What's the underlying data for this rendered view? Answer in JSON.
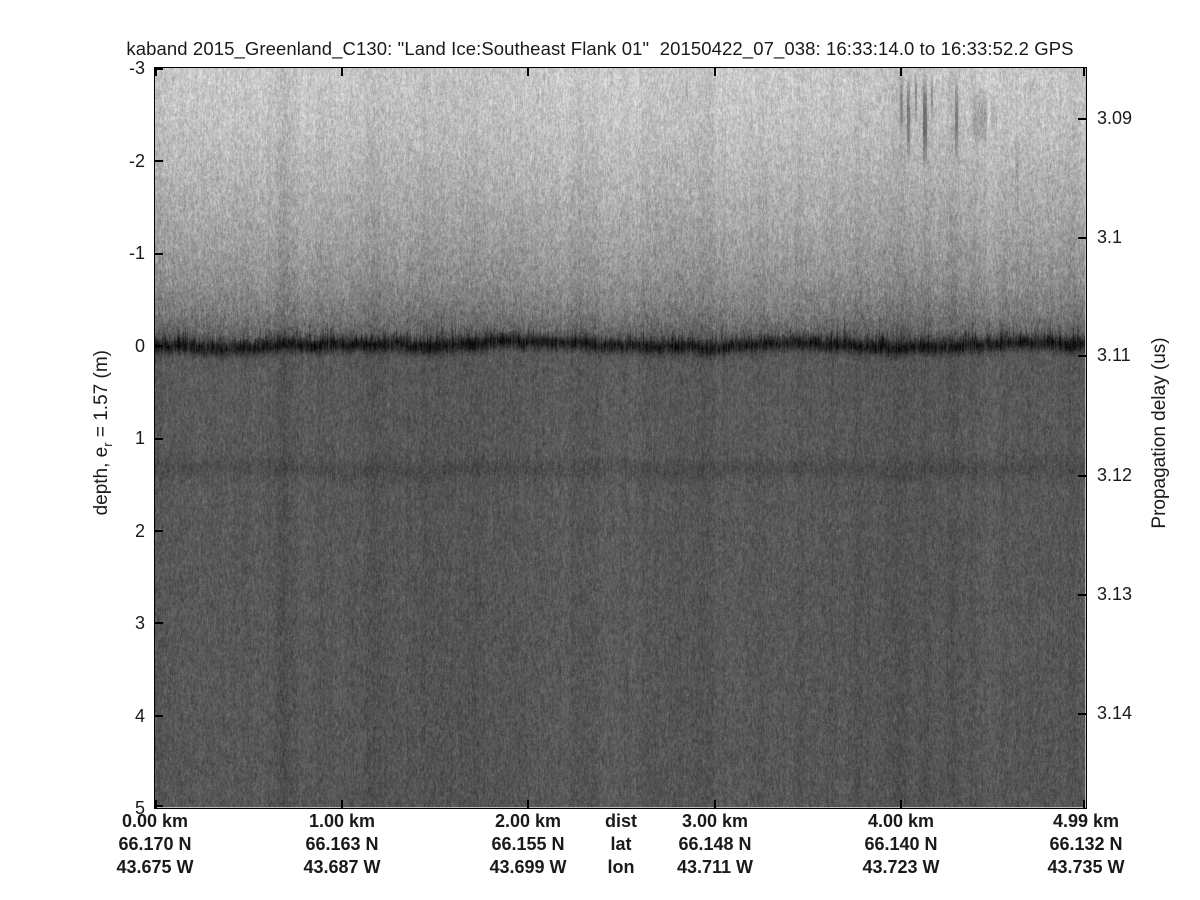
{
  "title": "kaband 2015_Greenland_C130: \"Land Ice:Southeast Flank 01\"  20150422_07_038: 16:33:14.0 to 16:33:52.2 GPS",
  "left_axis": {
    "label_pre": "depth, e",
    "label_sub": "r",
    "label_post": " = 1.57 (m)",
    "ticks": [
      "-3",
      "-2",
      "-1",
      "0",
      "1",
      "2",
      "3",
      "4",
      "5"
    ]
  },
  "right_axis": {
    "label": "Propagation delay (us)",
    "ticks": [
      "3.09",
      "3.1",
      "3.11",
      "3.12",
      "3.13",
      "3.14"
    ]
  },
  "bottom_axis": {
    "columns": [
      {
        "dist": "0.00 km",
        "lat": "66.170 N",
        "lon": "43.675 W"
      },
      {
        "dist": "1.00 km",
        "lat": "66.163 N",
        "lon": "43.687 W"
      },
      {
        "dist": "2.00 km",
        "lat": "66.155 N",
        "lon": "43.699 W"
      },
      {
        "dist": "dist",
        "lat": "lat",
        "lon": "lon"
      },
      {
        "dist": "3.00 km",
        "lat": "66.148 N",
        "lon": "43.711 W"
      },
      {
        "dist": "4.00 km",
        "lat": "66.140 N",
        "lon": "43.723 W"
      },
      {
        "dist": "4.99 km",
        "lat": "66.132 N",
        "lon": "43.735 W"
      }
    ]
  },
  "chart_data": {
    "type": "heatmap",
    "title": "kaband 2015_Greenland_C130: \"Land Ice:Southeast Flank 01\"  20150422_07_038: 16:33:14.0 to 16:33:52.2 GPS",
    "description": "Ka-band radar altimeter echogram (grayscale, white = weak return, black = strong return)",
    "x_axis": {
      "row_labels": [
        "dist",
        "lat",
        "lon"
      ],
      "dist_km": [
        0.0,
        1.0,
        2.0,
        3.0,
        4.0,
        4.99
      ],
      "lat_N": [
        66.17,
        66.163,
        66.155,
        66.148,
        66.14,
        66.132
      ],
      "lon_W": [
        43.675,
        43.687,
        43.699,
        43.711,
        43.723,
        43.735
      ]
    },
    "y_left_axis": {
      "label": "depth, e_r = 1.57 (m)",
      "range": [
        -3,
        5
      ],
      "ticks": [
        -3,
        -2,
        -1,
        0,
        1,
        2,
        3,
        4,
        5
      ]
    },
    "y_right_axis": {
      "label": "Propagation delay (us)",
      "ticks": [
        3.09,
        3.1,
        3.11,
        3.12,
        3.13,
        3.14
      ]
    },
    "features": [
      "bright speckled region above surface darkening gradually from depth -3 m toward 0 m",
      "strong dark jagged surface return centered at depth 0 m (~3.111 us delay) across all 4.99 km",
      "faint darker internal reflector near depth 1.3 m",
      "uniform dark speckle from surface down to 5 m depth",
      "dark vertical fade streaks between ~4.0 and 4.6 km at depths -3 to -2.2 m"
    ],
    "grayscale_levels": {
      "top_background": "#c5c5c5",
      "surface_return": "#2a2a2a",
      "subsurface": "#525252"
    }
  }
}
